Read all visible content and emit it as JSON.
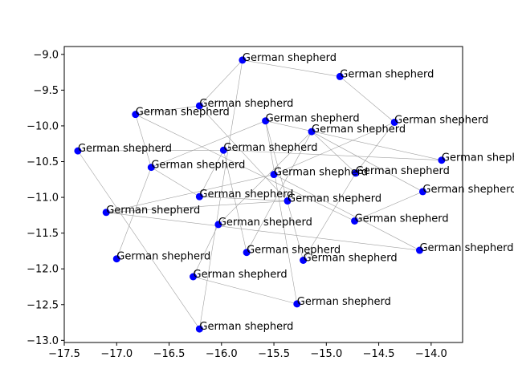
{
  "chart_data": {
    "type": "scatter",
    "title": "",
    "xlabel": "",
    "ylabel": "",
    "xlim": [
      -17.5,
      -13.7
    ],
    "ylim": [
      -13.03,
      -8.89
    ],
    "x_ticks": [
      -17.5,
      -17.0,
      -16.5,
      -16.0,
      -15.5,
      -15.0,
      -14.5,
      -14.0
    ],
    "y_ticks": [
      -9.0,
      -9.5,
      -10.0,
      -10.5,
      -11.0,
      -11.5,
      -12.0,
      -12.5,
      -13.0
    ],
    "x_tick_labels": [
      "−17.5",
      "−17.0",
      "−16.5",
      "−16.0",
      "−15.5",
      "−15.0",
      "−14.5",
      "−14.0"
    ],
    "y_tick_labels": [
      "−9.0",
      "−9.5",
      "−10.0",
      "−10.5",
      "−11.0",
      "−11.5",
      "−12.0",
      "−12.5",
      "−13.0"
    ],
    "grid": false,
    "marker_color": "#0000ff",
    "edge_color": "#a0a0a0",
    "points": [
      {
        "x": -15.8,
        "y": -9.08,
        "label": "German shepherd"
      },
      {
        "x": -14.87,
        "y": -9.31,
        "label": "German shepherd"
      },
      {
        "x": -16.21,
        "y": -9.72,
        "label": "German shepherd"
      },
      {
        "x": -16.82,
        "y": -9.84,
        "label": "German shepherd"
      },
      {
        "x": -15.58,
        "y": -9.93,
        "label": "German shepherd"
      },
      {
        "x": -14.35,
        "y": -9.95,
        "label": "German shepherd"
      },
      {
        "x": -15.14,
        "y": -10.08,
        "label": "German shepherd"
      },
      {
        "x": -17.37,
        "y": -10.35,
        "label": "German shepherd"
      },
      {
        "x": -15.98,
        "y": -10.34,
        "label": "German shepherd"
      },
      {
        "x": -13.9,
        "y": -10.48,
        "label": "German shepherd"
      },
      {
        "x": -16.67,
        "y": -10.58,
        "label": "German shepherd"
      },
      {
        "x": -15.5,
        "y": -10.68,
        "label": "German shepherd"
      },
      {
        "x": -14.72,
        "y": -10.66,
        "label": "German shepherd"
      },
      {
        "x": -14.08,
        "y": -10.92,
        "label": "German shepherd"
      },
      {
        "x": -16.21,
        "y": -10.99,
        "label": "German shepherd"
      },
      {
        "x": -15.37,
        "y": -11.05,
        "label": "German shepherd"
      },
      {
        "x": -17.1,
        "y": -11.21,
        "label": "German shepherd"
      },
      {
        "x": -14.73,
        "y": -11.33,
        "label": "German shepherd"
      },
      {
        "x": -16.03,
        "y": -11.38,
        "label": "German shepherd"
      },
      {
        "x": -14.11,
        "y": -11.74,
        "label": "German shepherd"
      },
      {
        "x": -15.76,
        "y": -11.77,
        "label": "German shepherd"
      },
      {
        "x": -15.22,
        "y": -11.88,
        "label": "German shepherd"
      },
      {
        "x": -17.0,
        "y": -11.86,
        "label": "German shepherd"
      },
      {
        "x": -16.27,
        "y": -12.11,
        "label": "German shepherd"
      },
      {
        "x": -15.28,
        "y": -12.49,
        "label": "German shepherd"
      },
      {
        "x": -16.21,
        "y": -12.84,
        "label": "German shepherd"
      }
    ],
    "edges": [
      [
        0,
        1
      ],
      [
        0,
        2
      ],
      [
        1,
        5
      ],
      [
        2,
        3
      ],
      [
        2,
        15
      ],
      [
        3,
        10
      ],
      [
        3,
        17
      ],
      [
        4,
        24
      ],
      [
        4,
        21
      ],
      [
        5,
        12
      ],
      [
        5,
        11
      ],
      [
        6,
        18
      ],
      [
        6,
        20
      ],
      [
        6,
        13
      ],
      [
        7,
        8
      ],
      [
        7,
        25
      ],
      [
        8,
        9
      ],
      [
        8,
        14
      ],
      [
        8,
        20
      ],
      [
        9,
        4
      ],
      [
        10,
        22
      ],
      [
        10,
        14
      ],
      [
        11,
        19
      ],
      [
        11,
        16
      ],
      [
        12,
        21
      ],
      [
        13,
        17
      ],
      [
        14,
        15
      ],
      [
        15,
        16
      ],
      [
        16,
        19
      ],
      [
        18,
        23
      ],
      [
        23,
        24
      ],
      [
        25,
        0
      ],
      [
        12,
        6
      ],
      [
        4,
        10
      ]
    ]
  }
}
